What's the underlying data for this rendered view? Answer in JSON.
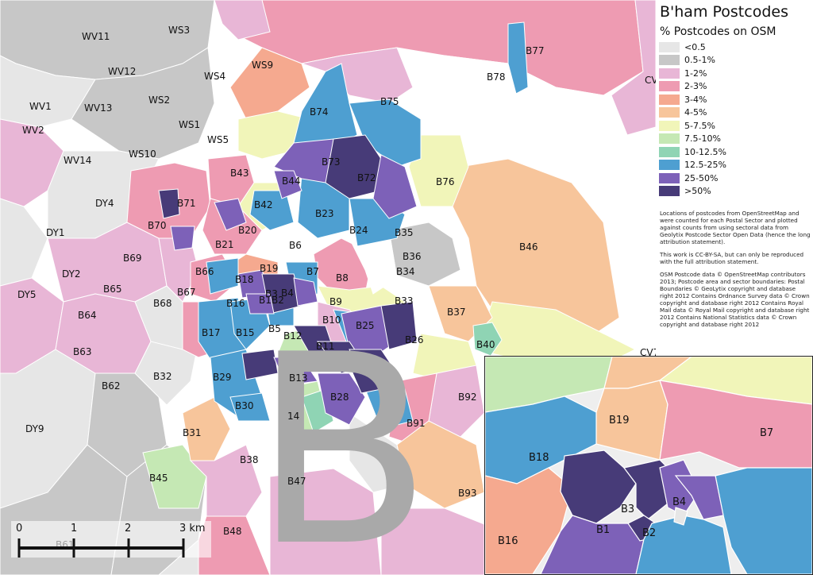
{
  "legend": {
    "title": "B'ham Postcodes",
    "subtitle": "% Postcodes on OSM",
    "items": [
      {
        "label": "<0.5",
        "color": "#e6e6e6"
      },
      {
        "label": "0.5-1%",
        "color": "#c7c7c7"
      },
      {
        "label": "1-2%",
        "color": "#e8b6d6"
      },
      {
        "label": "2-3%",
        "color": "#ee9bb2"
      },
      {
        "label": "3-4%",
        "color": "#f5a98f"
      },
      {
        "label": "4-5%",
        "color": "#f7c59b"
      },
      {
        "label": "5-7.5%",
        "color": "#f1f5b9"
      },
      {
        "label": "7.5-10%",
        "color": "#c5e8b4"
      },
      {
        "label": "10-12.5%",
        "color": "#8fd4b4"
      },
      {
        "label": "12.5-25%",
        "color": "#4e9fd1"
      },
      {
        "label": "25-50%",
        "color": "#7d61b8"
      },
      {
        "label": ">50%",
        "color": "#473b78"
      }
    ],
    "notes": [
      "Locations of postcodes from OpenStreetMap and were counted for each Postal Sector and plotted against counts from using sectoral data from Geolytix Postcode Sector Open Data (hence the long attribution statement).",
      "This work is CC-BY-SA, but can only be reproduced with the full attribution statement.",
      "OSM Postcode data © OpenStreetMap contributors 2013; Postcode area and sector boundaries: Postal Boundaries © GeoLytix copyright and database right 2012 Contains Ordnance Survey data © Crown copyright and database right 2012 Contains Royal Mail data © Royal Mail copyright and database right 2012 Contains National Statistics data © Crown copyright and database right 2012"
    ]
  },
  "map_labels": [
    "WV11",
    "WS3",
    "WV12",
    "WS4",
    "WS9",
    "B77",
    "B78",
    "WV1",
    "WV13",
    "WS2",
    "B74",
    "B75",
    "WV2",
    "WS1",
    "WS5",
    "WS10",
    "WV14",
    "B73",
    "B72",
    "B43",
    "B44",
    "B76",
    "B42",
    "DY4",
    "B71",
    "B23",
    "B70",
    "B20",
    "B24",
    "B35",
    "DY1",
    "B21",
    "B6",
    "B46",
    "B69",
    "B36",
    "B66",
    "B19",
    "B7",
    "B34",
    "DY2",
    "B18",
    "B8",
    "B65",
    "B67",
    "B3",
    "B4",
    "DY5",
    "B68",
    "B16",
    "B1",
    "B2",
    "B9",
    "B33",
    "B64",
    "B5",
    "B10",
    "B37",
    "B17",
    "B15",
    "B25",
    "B12",
    "B26",
    "B40",
    "B63",
    "B11",
    "B32",
    "B29",
    "B13",
    "B62",
    "B28",
    "B92",
    "B30",
    "14",
    "B91",
    "DY9",
    "B31",
    "B38",
    "B47",
    "B45",
    "B93",
    "B48",
    "CV",
    "CV7",
    "B61"
  ],
  "watermark": "B",
  "inset_labels": [
    "B19",
    "B7",
    "B18",
    "B3",
    "B4",
    "B1",
    "B2",
    "B16"
  ],
  "scalebar": {
    "ticks": [
      "0",
      "1",
      "2",
      "3 km"
    ]
  }
}
